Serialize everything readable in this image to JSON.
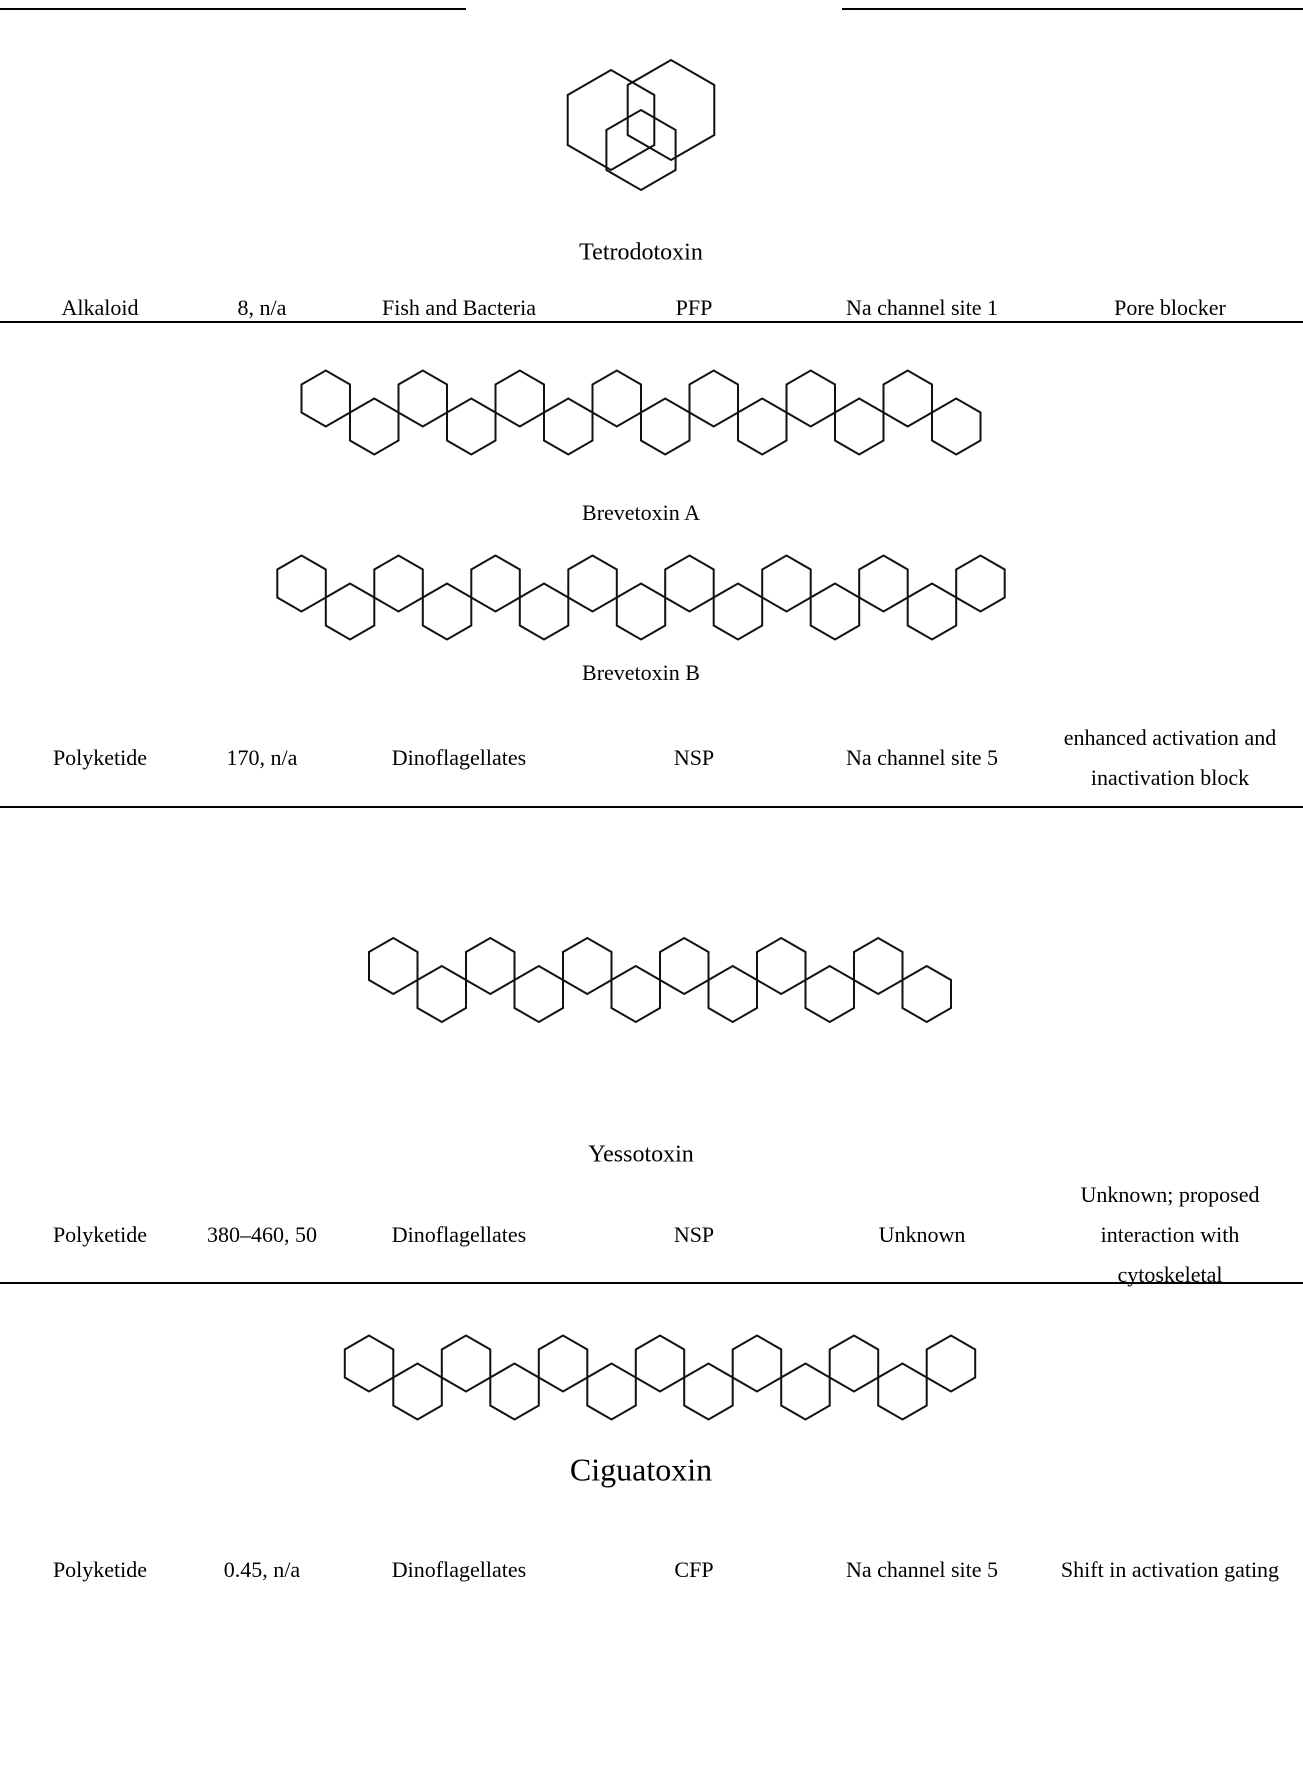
{
  "table": {
    "rows": [
      {
        "structures": [
          "Tetrodotoxin"
        ],
        "cells": [
          "Alkaloid",
          "8, n/a",
          "Fish and Bacteria",
          "PFP",
          "Na channel site 1",
          "Pore blocker"
        ]
      },
      {
        "structures": [
          "Brevetoxin A",
          "Brevetoxin B"
        ],
        "cells": [
          "Polyketide",
          "170, n/a",
          "Dinoflagellates",
          "NSP",
          "Na channel site 5",
          "enhanced activation and inactivation block"
        ]
      },
      {
        "structures": [
          "Yessotoxin"
        ],
        "cells": [
          "Polyketide",
          "380–460, 50",
          "Dinoflagellates",
          "NSP",
          "Unknown",
          "Unknown; proposed interaction with cytoskeletal"
        ]
      },
      {
        "structures": [
          "Ciguatoxin"
        ],
        "cells": [
          "Polyketide",
          "0.45, n/a",
          "Dinoflagellates",
          "CFP",
          "Na channel site 5",
          "Shift in activation gating"
        ]
      }
    ]
  }
}
